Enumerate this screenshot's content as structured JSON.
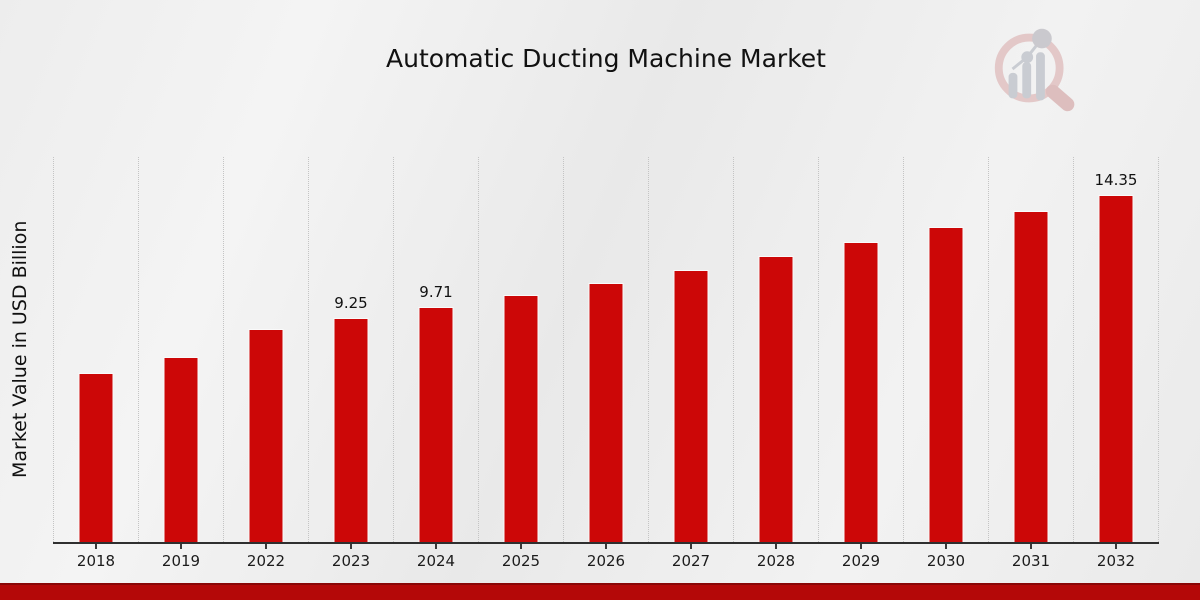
{
  "page": {
    "title": "Automatic Ducting Machine Market",
    "y_axis_label": "Market Value in USD Billion"
  },
  "branding": {
    "logo_icon": "magnifier-bar-chart-watermark-logo",
    "footer_stripe_color": "#b40808"
  },
  "colors": {
    "bar": "#cc0707",
    "background": "#ededed",
    "gridline": "#c4c4c4",
    "axis": "#2f2f2f",
    "text": "#111111",
    "logo_pink": "#e3c8c8",
    "logo_gray": "#c9ccd2"
  },
  "chart_data": {
    "type": "bar",
    "title": "Automatic Ducting Machine Market",
    "xlabel": "",
    "ylabel": "Market Value in USD Billion",
    "categories": [
      "2018",
      "2019",
      "2022",
      "2023",
      "2024",
      "2025",
      "2026",
      "2027",
      "2028",
      "2029",
      "2030",
      "2031",
      "2032"
    ],
    "values": [
      7.0,
      7.65,
      8.81,
      9.25,
      9.71,
      10.2,
      10.7,
      11.24,
      11.8,
      12.39,
      13.01,
      13.66,
      14.35
    ],
    "data_labels": [
      "",
      "",
      "",
      "9.25",
      "9.71",
      "",
      "",
      "",
      "",
      "",
      "",
      "",
      "14.35"
    ],
    "bar_color": "#cc0707",
    "ylim": [
      0,
      15.9
    ],
    "grid": "vertical-category-separators",
    "legend": "none"
  }
}
